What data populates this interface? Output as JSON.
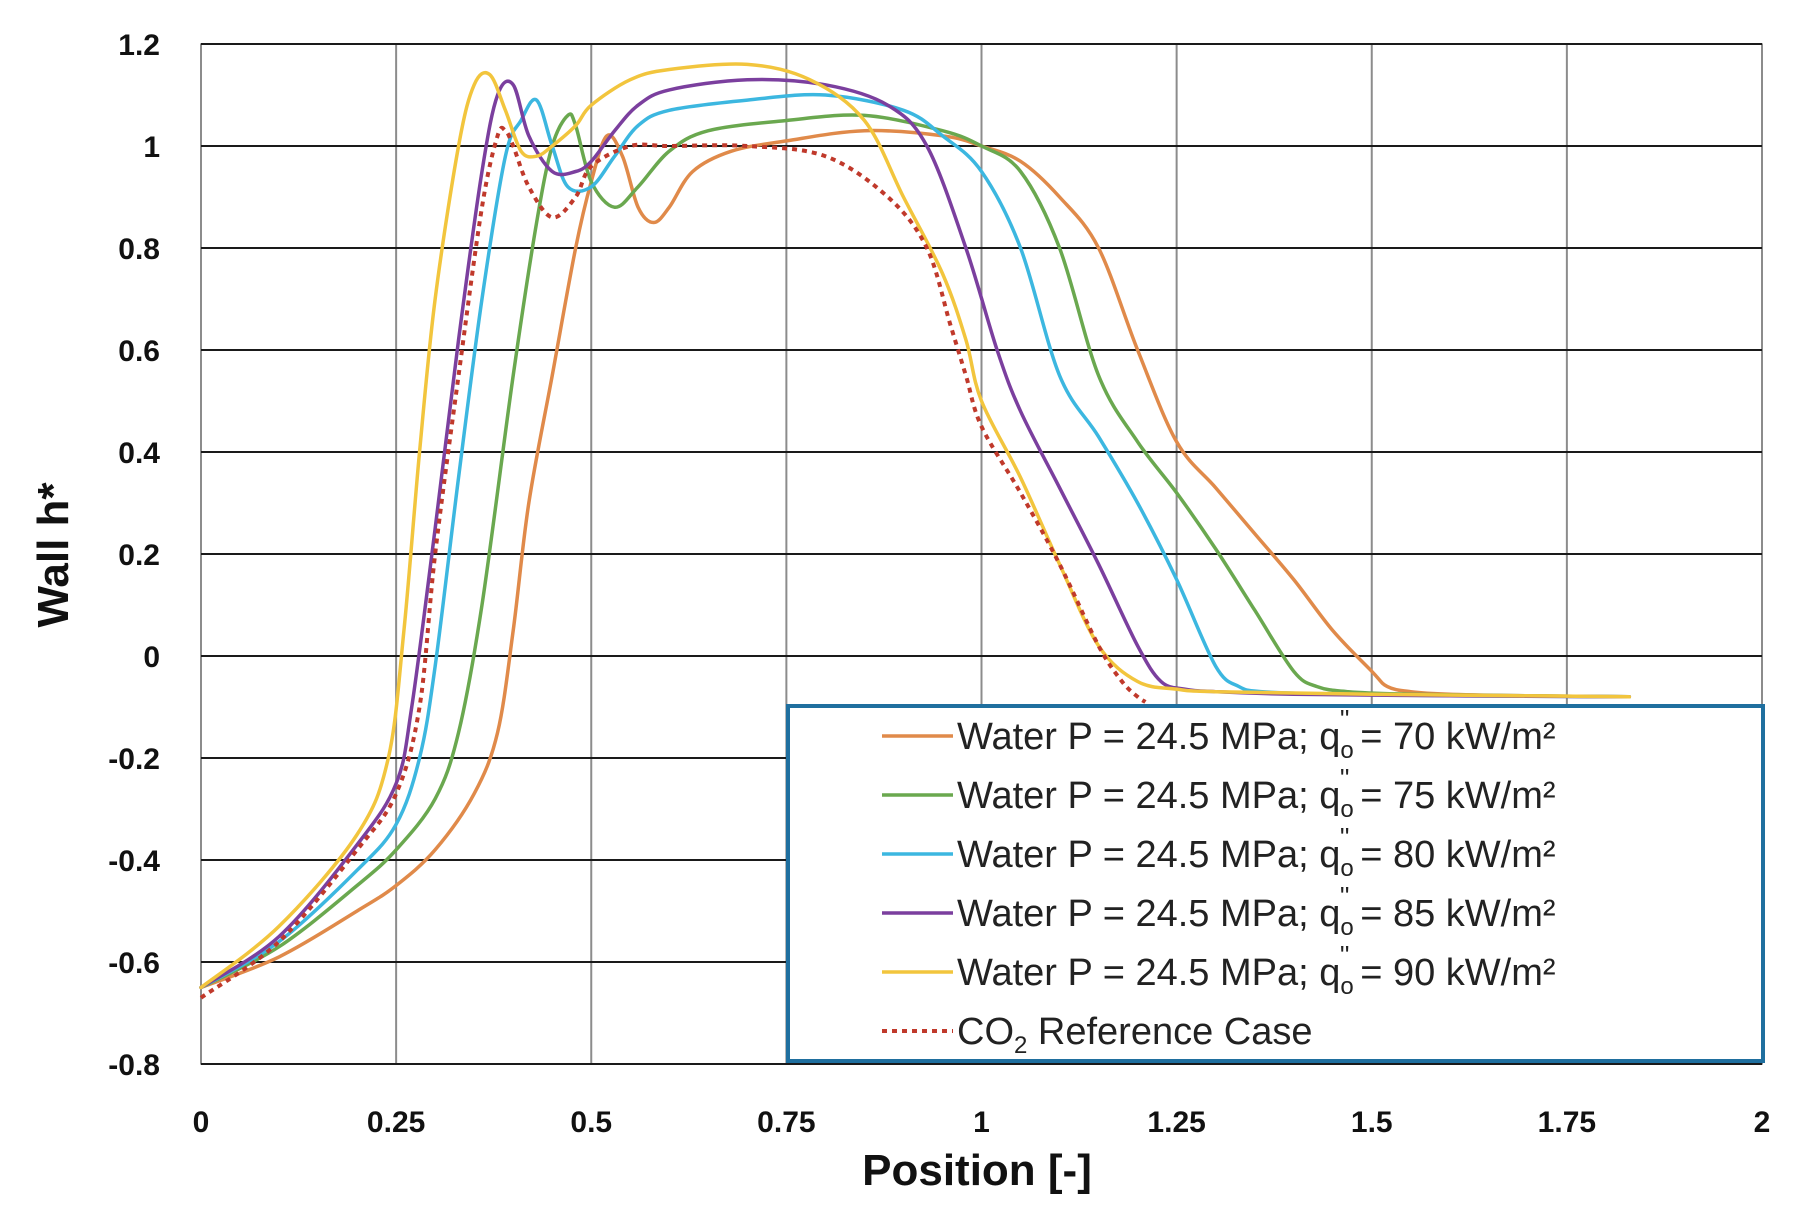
{
  "chart_data": {
    "type": "line",
    "title": "",
    "xlabel": "Position [-]",
    "ylabel": "Wall h*",
    "xlim": [
      0,
      2
    ],
    "ylim": [
      -0.8,
      1.2
    ],
    "xticks": [
      0,
      0.25,
      0.5,
      0.75,
      1,
      1.25,
      1.5,
      1.75,
      2
    ],
    "xtick_labels": [
      "0",
      "0.25",
      "0.5",
      "0.75",
      "1",
      "1.25",
      "1.5",
      "1.75",
      "2"
    ],
    "yticks": [
      1.2,
      1,
      0.8,
      0.6,
      0.4,
      0.2,
      0,
      -0.2,
      -0.4,
      -0.6,
      -0.8
    ],
    "ytick_labels": [
      "1.2",
      "1",
      "0.8",
      "0.6",
      "0.4",
      "0.2",
      "0",
      "-0.2",
      "-0.4",
      "-0.6",
      "-0.8"
    ],
    "grid": true,
    "legend_position": "bottom-right",
    "legend_border_color": "#1f6f9f",
    "series": [
      {
        "name": "Water P = 24.5 MPa;  q₀'' = 70 kW/m²",
        "legend": {
          "prefix": "Water P = 24.5 MPa;  q",
          "sub": "o",
          "sup": "''",
          "suffix": " = 70 kW/m²"
        },
        "color": "#e08a4a",
        "dash": false,
        "x": [
          0,
          0.1,
          0.2,
          0.25,
          0.3,
          0.35,
          0.38,
          0.4,
          0.42,
          0.45,
          0.48,
          0.5,
          0.52,
          0.54,
          0.56,
          0.58,
          0.6,
          0.63,
          0.68,
          0.75,
          0.85,
          0.95,
          1.0,
          1.05,
          1.1,
          1.15,
          1.2,
          1.25,
          1.3,
          1.35,
          1.4,
          1.45,
          1.5,
          1.52,
          1.55,
          1.6,
          1.7,
          1.83
        ],
        "y": [
          -0.65,
          -0.59,
          -0.5,
          -0.45,
          -0.38,
          -0.27,
          -0.15,
          0.05,
          0.3,
          0.55,
          0.8,
          0.93,
          1.02,
          0.98,
          0.88,
          0.85,
          0.88,
          0.95,
          0.99,
          1.01,
          1.03,
          1.02,
          1.0,
          0.97,
          0.9,
          0.8,
          0.6,
          0.42,
          0.33,
          0.24,
          0.15,
          0.05,
          -0.03,
          -0.06,
          -0.07,
          -0.075,
          -0.078,
          -0.08
        ]
      },
      {
        "name": "Water P = 24.5 MPa;  q₀'' = 75 kW/m²",
        "legend": {
          "prefix": "Water P = 24.5 MPa;  q",
          "sub": "o",
          "sup": "''",
          "suffix": " = 75 kW/m²"
        },
        "color": "#6aa84f",
        "dash": false,
        "x": [
          0,
          0.1,
          0.2,
          0.25,
          0.3,
          0.33,
          0.36,
          0.4,
          0.43,
          0.45,
          0.47,
          0.48,
          0.5,
          0.53,
          0.56,
          0.6,
          0.65,
          0.75,
          0.85,
          0.95,
          1.0,
          1.05,
          1.1,
          1.15,
          1.2,
          1.25,
          1.3,
          1.35,
          1.4,
          1.43,
          1.47,
          1.55,
          1.7,
          1.83
        ],
        "y": [
          -0.65,
          -0.57,
          -0.45,
          -0.38,
          -0.28,
          -0.15,
          0.1,
          0.55,
          0.85,
          1.0,
          1.06,
          1.04,
          0.93,
          0.88,
          0.92,
          0.99,
          1.03,
          1.05,
          1.06,
          1.03,
          1.0,
          0.95,
          0.8,
          0.55,
          0.42,
          0.32,
          0.21,
          0.09,
          -0.03,
          -0.06,
          -0.07,
          -0.075,
          -0.078,
          -0.08
        ]
      },
      {
        "name": "Water P = 24.5 MPa;  q₀'' = 80 kW/m²",
        "legend": {
          "prefix": "Water P = 24.5 MPa;  q",
          "sub": "o",
          "sup": "''",
          "suffix": " = 80 kW/m²"
        },
        "color": "#3cb7e0",
        "dash": false,
        "x": [
          0,
          0.1,
          0.2,
          0.25,
          0.28,
          0.3,
          0.33,
          0.36,
          0.39,
          0.41,
          0.43,
          0.45,
          0.47,
          0.5,
          0.53,
          0.56,
          0.6,
          0.7,
          0.8,
          0.9,
          0.95,
          1.0,
          1.05,
          1.1,
          1.15,
          1.2,
          1.25,
          1.3,
          1.33,
          1.36,
          1.45,
          1.6,
          1.83
        ],
        "y": [
          -0.65,
          -0.56,
          -0.42,
          -0.33,
          -0.2,
          -0.02,
          0.35,
          0.7,
          0.98,
          1.05,
          1.09,
          1.0,
          0.92,
          0.92,
          0.98,
          1.04,
          1.07,
          1.09,
          1.1,
          1.07,
          1.02,
          0.95,
          0.8,
          0.55,
          0.43,
          0.3,
          0.15,
          -0.02,
          -0.06,
          -0.07,
          -0.075,
          -0.078,
          -0.08
        ]
      },
      {
        "name": "Water P = 24.5 MPa;  q₀'' = 85 kW/m²",
        "legend": {
          "prefix": "Water P = 24.5 MPa;  q",
          "sub": "o",
          "sup": "''",
          "suffix": " = 85 kW/m²"
        },
        "color": "#7b3f9e",
        "dash": false,
        "x": [
          0,
          0.1,
          0.2,
          0.25,
          0.27,
          0.3,
          0.33,
          0.36,
          0.38,
          0.4,
          0.42,
          0.45,
          0.48,
          0.5,
          0.53,
          0.56,
          0.6,
          0.7,
          0.8,
          0.88,
          0.93,
          0.98,
          1.02,
          1.05,
          1.1,
          1.15,
          1.2,
          1.23,
          1.26,
          1.3,
          1.4,
          1.6,
          1.83
        ],
        "y": [
          -0.65,
          -0.55,
          -0.37,
          -0.25,
          -0.1,
          0.25,
          0.62,
          0.95,
          1.1,
          1.12,
          1.02,
          0.95,
          0.95,
          0.97,
          1.03,
          1.08,
          1.11,
          1.13,
          1.12,
          1.08,
          1.0,
          0.8,
          0.6,
          0.48,
          0.33,
          0.18,
          0.02,
          -0.05,
          -0.065,
          -0.07,
          -0.075,
          -0.078,
          -0.08
        ]
      },
      {
        "name": "Water P = 24.5 MPa;  q₀'' = 90 kW/m²",
        "legend": {
          "prefix": "Water P = 24.5 MPa;  q",
          "sub": "o",
          "sup": "''",
          "suffix": " = 90 kW/m²"
        },
        "color": "#f2c53d",
        "dash": false,
        "x": [
          0,
          0.1,
          0.2,
          0.24,
          0.26,
          0.28,
          0.3,
          0.33,
          0.35,
          0.37,
          0.39,
          0.41,
          0.43,
          0.45,
          0.48,
          0.5,
          0.55,
          0.6,
          0.7,
          0.78,
          0.85,
          0.9,
          0.95,
          0.98,
          1.0,
          1.05,
          1.1,
          1.15,
          1.2,
          1.25,
          1.3,
          1.5,
          1.83
        ],
        "y": [
          -0.65,
          -0.53,
          -0.35,
          -0.2,
          0.05,
          0.4,
          0.7,
          1.0,
          1.12,
          1.14,
          1.07,
          0.99,
          0.98,
          1.0,
          1.04,
          1.08,
          1.13,
          1.15,
          1.16,
          1.13,
          1.05,
          0.9,
          0.75,
          0.62,
          0.5,
          0.35,
          0.18,
          0.02,
          -0.05,
          -0.065,
          -0.07,
          -0.075,
          -0.08
        ]
      },
      {
        "name": "CO₂ Reference Case",
        "legend": {
          "prefix": "CO",
          "sub": "2",
          "sup": "",
          "suffix": " Reference Case"
        },
        "color": "#c0392b",
        "dash": true,
        "x": [
          0,
          0.1,
          0.2,
          0.25,
          0.28,
          0.3,
          0.33,
          0.36,
          0.38,
          0.39,
          0.4,
          0.42,
          0.45,
          0.48,
          0.5,
          0.55,
          0.6,
          0.7,
          0.8,
          0.88,
          0.93,
          0.96,
          0.98,
          1.0,
          1.05,
          1.1,
          1.15,
          1.18,
          1.2,
          1.21
        ],
        "y": [
          -0.67,
          -0.56,
          -0.38,
          -0.27,
          -0.1,
          0.2,
          0.55,
          0.88,
          1.02,
          1.03,
          1.0,
          0.92,
          0.86,
          0.9,
          0.96,
          1.0,
          1.0,
          1.0,
          0.98,
          0.9,
          0.8,
          0.65,
          0.55,
          0.45,
          0.32,
          0.18,
          0.02,
          -0.05,
          -0.08,
          -0.09
        ]
      }
    ]
  }
}
